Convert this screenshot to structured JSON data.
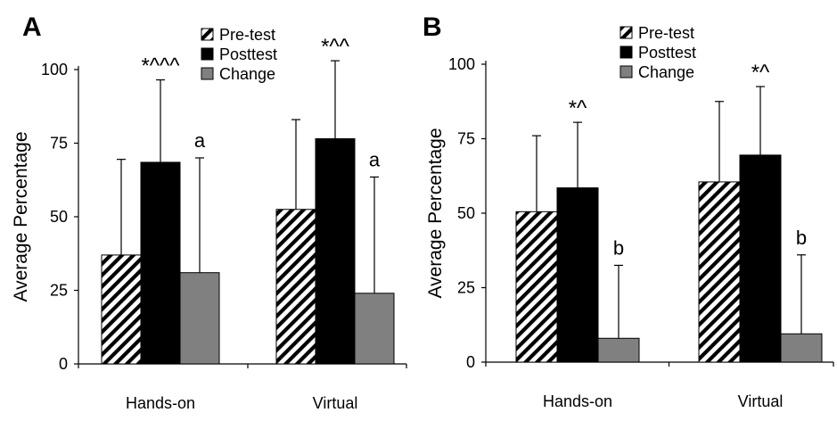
{
  "chart_data": [
    {
      "panel_label": "A",
      "type": "bar",
      "ylabel": "Average Percentage",
      "ylim": [
        0,
        100
      ],
      "yticks": [
        "0",
        "25",
        "50",
        "75",
        "100"
      ],
      "categories": [
        "Hands-on",
        "Virtual"
      ],
      "legend": {
        "position": "top-right"
      },
      "series": [
        {
          "name": "Pre-test",
          "pattern": "hatch",
          "values": [
            37,
            52.5
          ],
          "errors": [
            32.5,
            30.5
          ]
        },
        {
          "name": "Posttest",
          "color": "#000000",
          "values": [
            68.5,
            76.5
          ],
          "errors": [
            28,
            26.5
          ]
        },
        {
          "name": "Change",
          "color": "#808080",
          "values": [
            31,
            24
          ],
          "errors": [
            39,
            39.5
          ]
        }
      ],
      "annotations": [
        {
          "category": "Hands-on",
          "series": "Posttest",
          "text": "*^^^"
        },
        {
          "category": "Hands-on",
          "series": "Change",
          "text": "a"
        },
        {
          "category": "Virtual",
          "series": "Posttest",
          "text": "*^^"
        },
        {
          "category": "Virtual",
          "series": "Change",
          "text": "a"
        }
      ]
    },
    {
      "panel_label": "B",
      "type": "bar",
      "ylabel": "Average Percentage",
      "ylim": [
        0,
        100
      ],
      "yticks": [
        "0",
        "25",
        "50",
        "75",
        "100"
      ],
      "categories": [
        "Hands-on",
        "Virtual"
      ],
      "legend": {
        "position": "top-right"
      },
      "series": [
        {
          "name": "Pre-test",
          "pattern": "hatch",
          "values": [
            50.5,
            60.5
          ],
          "errors": [
            25.5,
            27
          ]
        },
        {
          "name": "Posttest",
          "color": "#000000",
          "values": [
            58.5,
            69.5
          ],
          "errors": [
            22,
            23
          ]
        },
        {
          "name": "Change",
          "color": "#808080",
          "values": [
            8,
            9.5
          ],
          "errors": [
            24.5,
            26.5
          ]
        }
      ],
      "annotations": [
        {
          "category": "Hands-on",
          "series": "Posttest",
          "text": "*^"
        },
        {
          "category": "Hands-on",
          "series": "Change",
          "text": "b"
        },
        {
          "category": "Virtual",
          "series": "Posttest",
          "text": "*^"
        },
        {
          "category": "Virtual",
          "series": "Change",
          "text": "b"
        }
      ]
    }
  ]
}
